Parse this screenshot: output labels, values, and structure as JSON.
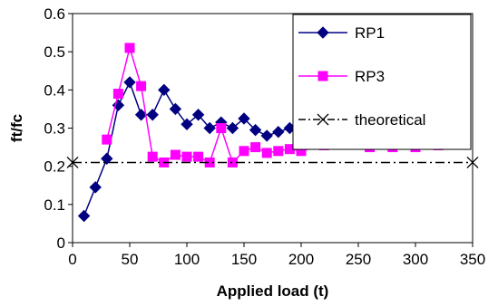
{
  "chart_data": {
    "type": "line",
    "title": "",
    "xlabel": "Applied load (t)",
    "ylabel": "ft/fc",
    "xlim": [
      0,
      350
    ],
    "ylim": [
      0,
      0.6
    ],
    "xticks": [
      0,
      50,
      100,
      150,
      200,
      250,
      300,
      350
    ],
    "yticks": [
      0,
      0.1,
      0.2,
      0.3,
      0.4,
      0.5,
      0.6
    ],
    "xtick_labels": [
      "0",
      "50",
      "100",
      "150",
      "200",
      "250",
      "300",
      "350"
    ],
    "ytick_labels": [
      "0",
      "0.1",
      "0.2",
      "0.3",
      "0.4",
      "0.5",
      "0.6"
    ],
    "grid": false,
    "legend_position": "top-right",
    "series": [
      {
        "name": "RP1",
        "color": "#000080",
        "marker": "diamond",
        "line_style": "solid",
        "x": [
          10,
          20,
          30,
          40,
          50,
          60,
          70,
          80,
          90,
          100,
          110,
          120,
          130,
          140,
          150,
          160,
          170,
          180,
          190,
          200,
          220,
          240,
          260,
          280
        ],
        "y": [
          0.07,
          0.145,
          0.22,
          0.36,
          0.42,
          0.335,
          0.335,
          0.4,
          0.35,
          0.31,
          0.335,
          0.3,
          0.315,
          0.3,
          0.325,
          0.295,
          0.28,
          0.29,
          0.3,
          0.28,
          0.295,
          0.28,
          0.255,
          0.255
        ]
      },
      {
        "name": "RP3",
        "color": "#FF00FF",
        "marker": "square",
        "line_style": "solid",
        "x": [
          30,
          40,
          50,
          60,
          70,
          80,
          90,
          100,
          110,
          120,
          130,
          140,
          150,
          160,
          170,
          180,
          190,
          200,
          220,
          240,
          260,
          280,
          300,
          320
        ],
        "y": [
          0.27,
          0.39,
          0.51,
          0.41,
          0.225,
          0.21,
          0.23,
          0.225,
          0.225,
          0.21,
          0.3,
          0.21,
          0.24,
          0.25,
          0.235,
          0.24,
          0.245,
          0.24,
          0.255,
          0.26,
          0.25,
          0.25,
          0.25,
          0.255
        ]
      },
      {
        "name": "theoretical",
        "color": "#000000",
        "marker": "x",
        "line_style": "dash-dot",
        "x": [
          0,
          350
        ],
        "y": [
          0.21,
          0.21
        ]
      }
    ]
  }
}
